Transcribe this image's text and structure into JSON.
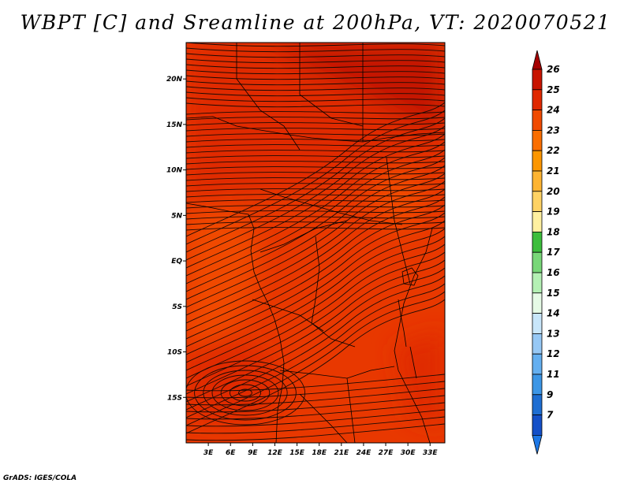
{
  "title": "WBPT [C] and Sreamline at 200hPa, VT: 2020070521",
  "credit": "GrADS: IGES/COLA",
  "map": {
    "lon_range": [
      0,
      35
    ],
    "lat_range": [
      -20,
      24
    ],
    "lon_ticks": [
      {
        "value": 3,
        "label": "3E"
      },
      {
        "value": 6,
        "label": "6E"
      },
      {
        "value": 9,
        "label": "9E"
      },
      {
        "value": 12,
        "label": "12E"
      },
      {
        "value": 15,
        "label": "15E"
      },
      {
        "value": 18,
        "label": "18E"
      },
      {
        "value": 21,
        "label": "21E"
      },
      {
        "value": 24,
        "label": "24E"
      },
      {
        "value": 27,
        "label": "27E"
      },
      {
        "value": 30,
        "label": "30E"
      },
      {
        "value": 33,
        "label": "33E"
      }
    ],
    "lat_ticks": [
      {
        "value": 20,
        "label": "20N"
      },
      {
        "value": 15,
        "label": "15N"
      },
      {
        "value": 10,
        "label": "10N"
      },
      {
        "value": 5,
        "label": "5N"
      },
      {
        "value": 0,
        "label": "EQ"
      },
      {
        "value": -5,
        "label": "5S"
      },
      {
        "value": -10,
        "label": "10S"
      },
      {
        "value": -15,
        "label": "15S"
      }
    ],
    "background_color": "#e83800",
    "field_levels": [
      {
        "range": "23-24",
        "color": "#f04a00"
      },
      {
        "range": "24-25",
        "color": "#e02c00"
      },
      {
        "range": "25-26",
        "color": "#c41400"
      }
    ],
    "streamline_color": "#1a0a05",
    "border_color": "#000000"
  },
  "colorbar": {
    "labels": [
      "26",
      "25",
      "24",
      "23",
      "22",
      "21",
      "20",
      "19",
      "18",
      "17",
      "16",
      "15",
      "14",
      "13",
      "12",
      "11",
      "9",
      "7"
    ],
    "colors": [
      "#a50000",
      "#c81400",
      "#e02800",
      "#f04a00",
      "#fa6e00",
      "#fc9600",
      "#feb432",
      "#fed264",
      "#fff0a0",
      "#3cbe3c",
      "#78d778",
      "#b4f0b4",
      "#e6fae6",
      "#c8e6fa",
      "#96c8f5",
      "#64aff0",
      "#3c96e6",
      "#1e6ed2",
      "#1450c8"
    ],
    "top_triangle_color": "#a50000",
    "bottom_triangle_color": "#1e78e6"
  }
}
